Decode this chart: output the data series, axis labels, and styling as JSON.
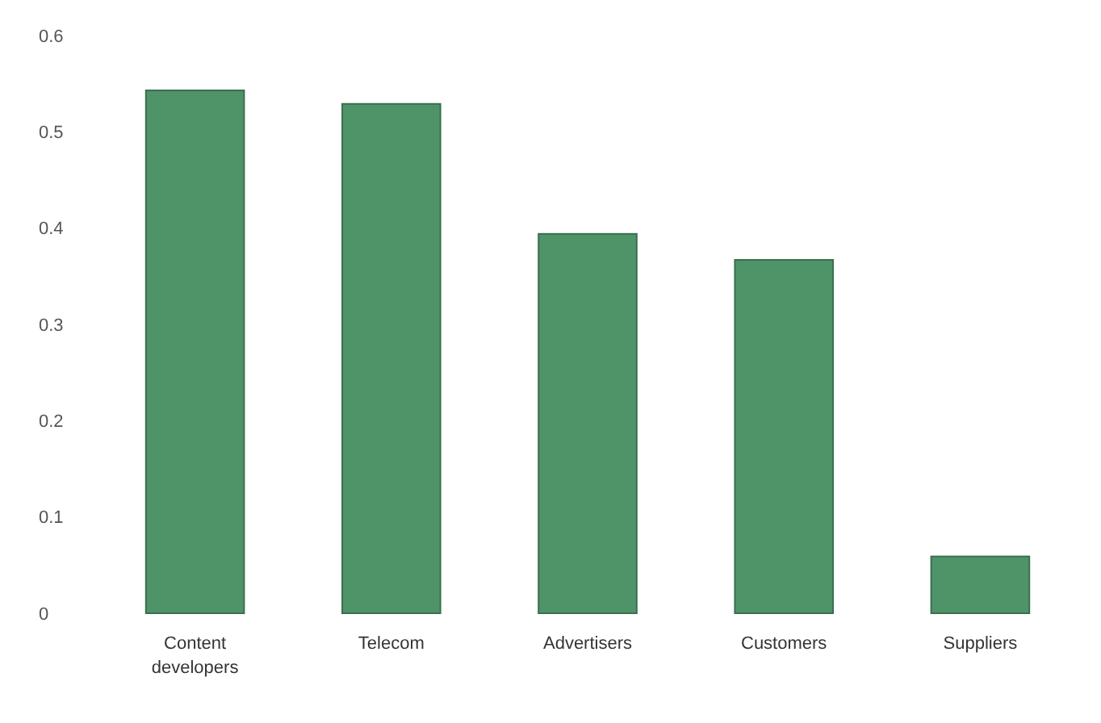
{
  "chart_data": {
    "type": "bar",
    "categories": [
      "Content developers",
      "Telecom",
      "Advertisers",
      "Customers",
      "Suppliers"
    ],
    "values": [
      0.543,
      0.529,
      0.394,
      0.367,
      0.059
    ],
    "color": "#4f9468",
    "ylim": [
      0,
      0.6
    ],
    "yticks": [
      0,
      0.1,
      0.2,
      0.3,
      0.4,
      0.5,
      0.6
    ],
    "grid": false
  }
}
